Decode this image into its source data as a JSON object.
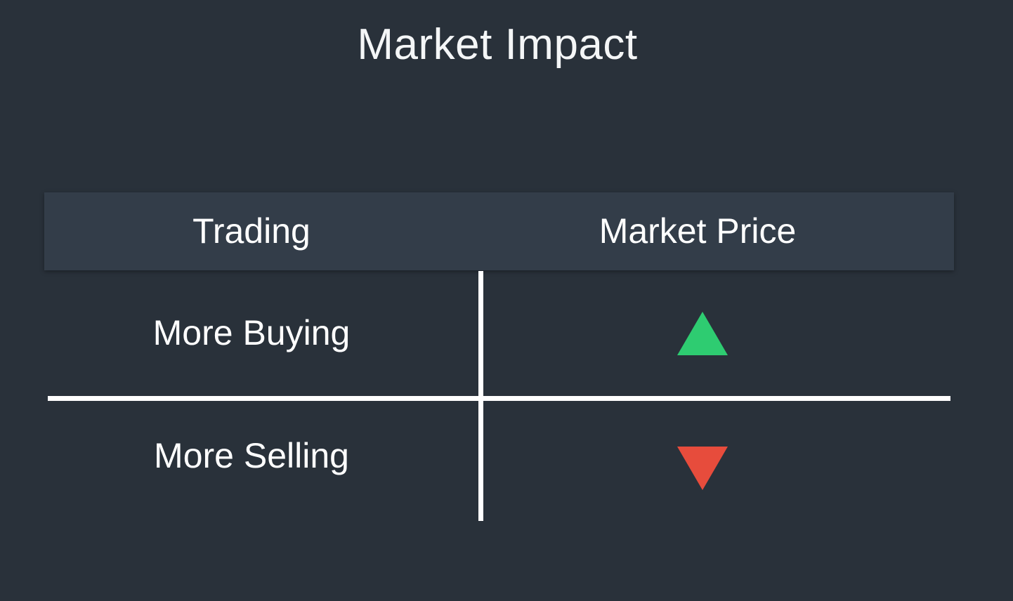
{
  "title": "Market Impact",
  "table": {
    "headers": [
      "Trading",
      "Market Price"
    ],
    "rows": [
      {
        "trading": "More Buying",
        "market_price": "up",
        "color": "#2ecc71"
      },
      {
        "trading": "More Selling",
        "market_price": "down",
        "color": "#e74c3c"
      }
    ]
  },
  "icons": {
    "up": "triangle-up-icon",
    "down": "triangle-down-icon"
  },
  "colors": {
    "background": "#29313a",
    "header_band": "#333d49",
    "lines": "#ffffff"
  }
}
